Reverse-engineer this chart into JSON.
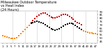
{
  "title": "Milwaukee Outdoor Temperature\nvs Heat Index\n(24 Hours)",
  "title_fontsize": 3.5,
  "background_color": "#ffffff",
  "grid_color": "#999999",
  "ylim": [
    41,
    90
  ],
  "xlim": [
    0,
    48
  ],
  "yticks": [
    45,
    50,
    55,
    60,
    65,
    70,
    75,
    80,
    85,
    90
  ],
  "ytick_labels": [
    "45",
    "50",
    "55",
    "60",
    "65",
    "70",
    "75",
    "80",
    "85",
    "90"
  ],
  "vgrid_positions": [
    6,
    12,
    18,
    24,
    30,
    36,
    42,
    48
  ],
  "temp_x": [
    1,
    2,
    3,
    4,
    5,
    6,
    7,
    8,
    9,
    10,
    11,
    12,
    13,
    14,
    15,
    16,
    17,
    18,
    19,
    20,
    21,
    22,
    23,
    24,
    25,
    26,
    27,
    28,
    29,
    30,
    31,
    32,
    33,
    34,
    35,
    36,
    37,
    38,
    39,
    40,
    41,
    42,
    43,
    44,
    45,
    46,
    47,
    48
  ],
  "temp_y": [
    53,
    52,
    51,
    50,
    49,
    48,
    48,
    50,
    53,
    56,
    59,
    62,
    65,
    68,
    71,
    73,
    74,
    75,
    74,
    73,
    71,
    69,
    67,
    65,
    63,
    62,
    61,
    62,
    63,
    65,
    67,
    69,
    70,
    71,
    71,
    70,
    68,
    66,
    64,
    62,
    60,
    59,
    58,
    57,
    57,
    56,
    56,
    55
  ],
  "heat_x": [
    15,
    16,
    17,
    18,
    19,
    20,
    21,
    22,
    23,
    24,
    25,
    26,
    27,
    28,
    29,
    30,
    31,
    32,
    33,
    34,
    35,
    36,
    37,
    38,
    39,
    40
  ],
  "heat_y": [
    73,
    76,
    79,
    82,
    84,
    86,
    87,
    87,
    85,
    83,
    81,
    80,
    80,
    81,
    82,
    84,
    85,
    85,
    84,
    82,
    80,
    78,
    75,
    73,
    71,
    69
  ],
  "temp_color": "#ff8800",
  "heat_color": "#cc0000",
  "black_color": "#000000",
  "dot_size": 2.5,
  "tick_fontsize": 2.8,
  "xtick_step": 2
}
